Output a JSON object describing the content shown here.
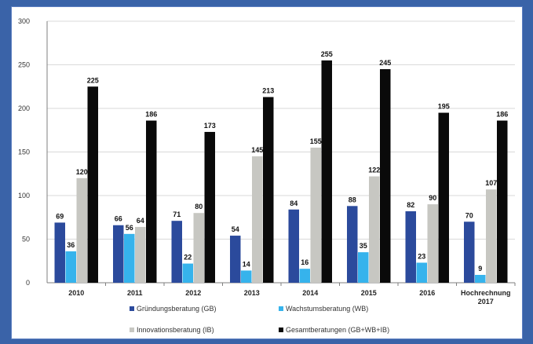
{
  "chart_data": {
    "type": "bar",
    "title": "",
    "xlabel": "",
    "ylabel": "",
    "ylim": [
      0,
      300
    ],
    "yticks": [
      0,
      50,
      100,
      150,
      200,
      250,
      300
    ],
    "categories": [
      [
        "2010"
      ],
      [
        "2011"
      ],
      [
        "2012"
      ],
      [
        "2013"
      ],
      [
        "2014"
      ],
      [
        "2015"
      ],
      [
        "2016"
      ],
      [
        "Hochrechnung",
        "2017"
      ]
    ],
    "series": [
      {
        "name": "Gründungsberatung (GB)",
        "color": "#2b4a9c",
        "values": [
          69,
          66,
          71,
          54,
          84,
          88,
          82,
          70
        ]
      },
      {
        "name": "Wachstumsberatung (WB)",
        "color": "#36b3ec",
        "values": [
          36,
          56,
          22,
          14,
          16,
          35,
          23,
          9
        ]
      },
      {
        "name": "Innovationsberatung (IB)",
        "color": "#c7c7c2",
        "values": [
          120,
          64,
          80,
          145,
          155,
          122,
          90,
          107
        ]
      },
      {
        "name": "Gesamtberatungen (GB+WB+IB)",
        "color": "#0a0a0a",
        "values": [
          225,
          186,
          173,
          213,
          255,
          245,
          195,
          186
        ]
      }
    ],
    "data_labels": [
      [
        "69",
        "66",
        "71",
        "54",
        "84",
        "88",
        "82",
        "70"
      ],
      [
        "36",
        "56",
        "22",
        "14",
        "16",
        "35",
        "23",
        "9"
      ],
      [
        "120",
        "64",
        "80",
        "145",
        "155",
        "122",
        "90",
        "107"
      ],
      [
        "225",
        "186",
        "173",
        "213",
        "255",
        "245",
        "195",
        "186"
      ]
    ],
    "grid": true,
    "legend_position": "bottom"
  },
  "colors": {
    "frame": "#3a63a8",
    "panel": "#ffffff",
    "grid": "#d9d9d9",
    "axis": "#7f7f7f"
  }
}
